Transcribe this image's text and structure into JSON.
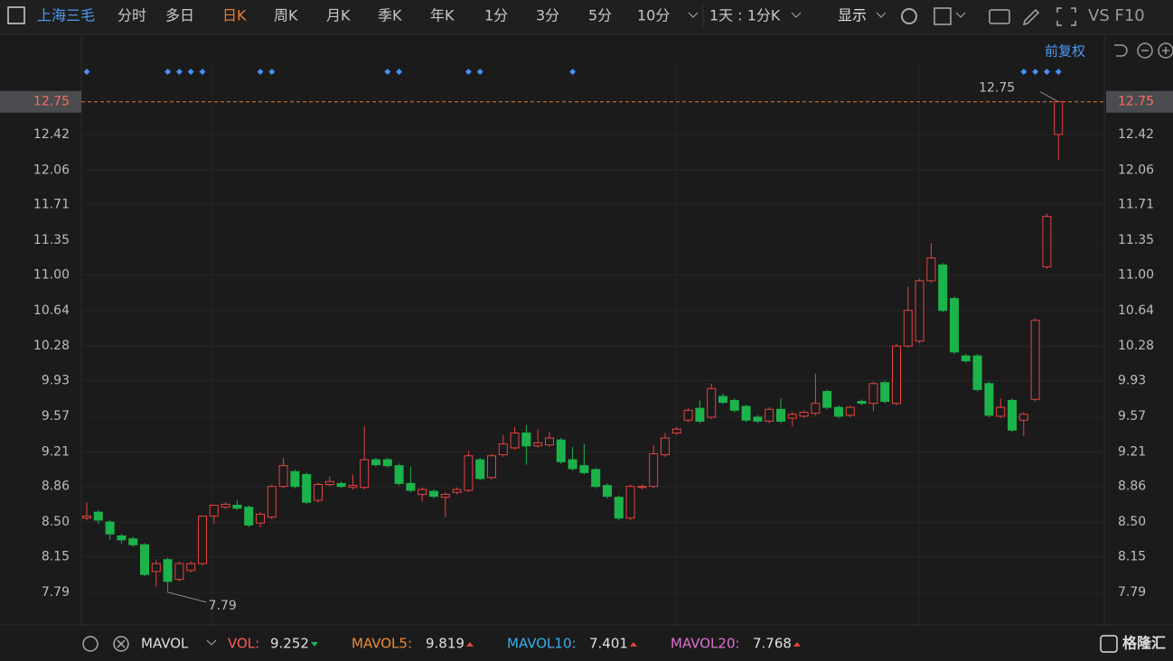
{
  "toolbar": {
    "stock": "上海三毛",
    "tabs": [
      "分时",
      "多日",
      "日K",
      "周K",
      "月K",
      "季K",
      "年K",
      "1分",
      "3分",
      "5分",
      "10分"
    ],
    "period": "1天 : 1分K",
    "display": "显示",
    "extra": "VS F10"
  },
  "adjust": "前复权",
  "indicator": {
    "name": "MAVOL",
    "items": [
      {
        "label": "VOL:",
        "value": 9.252
      },
      {
        "label": "MAVOL5:",
        "value": 9.819
      },
      {
        "label": "MAVOL10:",
        "value": 7.401
      },
      {
        "label": "MAVOL20:",
        "value": 7.768
      }
    ]
  },
  "logo": "格隆汇",
  "chart_data": {
    "type": "candlestick",
    "ylim": [
      7.46,
      13.14
    ],
    "yticks": [
      12.75,
      12.42,
      12.06,
      11.71,
      11.35,
      {
        "value": 11,
        "label": "11.00"
      },
      10.64,
      10.28,
      9.93,
      9.57,
      9.21,
      8.86,
      {
        "value": 8.5,
        "label": "8.50"
      },
      8.15,
      7.79
    ],
    "grid": true,
    "up_color": "#e8433f",
    "down_color": "#1db34b",
    "annotations": [
      {
        "text": "12.75",
        "index": 84
      },
      {
        "text": "7.79",
        "index": 7
      }
    ],
    "event_markers": [
      0,
      7,
      8,
      9,
      10,
      15,
      16,
      26,
      27,
      33,
      34,
      42,
      81,
      82,
      83,
      84
    ],
    "ohlc": [
      [
        8.54,
        8.7,
        8.52,
        8.56
      ],
      [
        8.6,
        8.62,
        8.48,
        8.52
      ],
      [
        8.5,
        8.52,
        8.32,
        8.38
      ],
      [
        8.36,
        8.38,
        8.28,
        8.32
      ],
      [
        8.33,
        8.35,
        8.25,
        8.27
      ],
      [
        8.27,
        8.29,
        7.95,
        7.97
      ],
      [
        8.0,
        8.12,
        7.85,
        8.08
      ],
      [
        8.12,
        8.14,
        7.79,
        7.9
      ],
      [
        7.92,
        8.1,
        7.9,
        8.08
      ],
      [
        8.01,
        8.1,
        7.99,
        8.08
      ],
      [
        8.08,
        8.56,
        8.06,
        8.56
      ],
      [
        8.56,
        8.67,
        8.48,
        8.67
      ],
      [
        8.65,
        8.7,
        8.63,
        8.68
      ],
      [
        8.67,
        8.72,
        8.62,
        8.64
      ],
      [
        8.65,
        8.67,
        8.45,
        8.47
      ],
      [
        8.49,
        8.6,
        8.45,
        8.58
      ],
      [
        8.55,
        8.88,
        8.53,
        8.86
      ],
      [
        8.86,
        9.15,
        8.84,
        9.07
      ],
      [
        9.01,
        9.03,
        8.84,
        8.86
      ],
      [
        8.98,
        9.0,
        8.68,
        8.7
      ],
      [
        8.72,
        8.9,
        8.7,
        8.88
      ],
      [
        8.88,
        8.96,
        8.86,
        8.91
      ],
      [
        8.89,
        8.91,
        8.84,
        8.86
      ],
      [
        8.85,
        8.98,
        8.83,
        8.87
      ],
      [
        8.85,
        9.47,
        8.83,
        9.13
      ],
      [
        9.13,
        9.15,
        9.06,
        9.08
      ],
      [
        9.13,
        9.15,
        9.05,
        9.07
      ],
      [
        9.07,
        9.09,
        8.87,
        8.89
      ],
      [
        8.89,
        9.06,
        8.8,
        8.82
      ],
      [
        8.78,
        8.85,
        8.71,
        8.83
      ],
      [
        8.81,
        8.83,
        8.74,
        8.76
      ],
      [
        8.75,
        8.8,
        8.55,
        8.78
      ],
      [
        8.8,
        8.85,
        8.78,
        8.83
      ],
      [
        8.82,
        9.22,
        8.8,
        9.17
      ],
      [
        9.13,
        9.15,
        8.92,
        8.94
      ],
      [
        8.95,
        9.19,
        8.93,
        9.17
      ],
      [
        9.18,
        9.38,
        9.16,
        9.29
      ],
      [
        9.25,
        9.46,
        9.23,
        9.4
      ],
      [
        9.4,
        9.48,
        9.08,
        9.27
      ],
      [
        9.27,
        9.44,
        9.25,
        9.3
      ],
      [
        9.28,
        9.41,
        9.26,
        9.35
      ],
      [
        9.33,
        9.35,
        9.09,
        9.11
      ],
      [
        9.13,
        9.26,
        9.02,
        9.04
      ],
      [
        9.07,
        9.29,
        8.98,
        9.0
      ],
      [
        9.03,
        9.05,
        8.84,
        8.86
      ],
      [
        8.87,
        8.89,
        8.74,
        8.76
      ],
      [
        8.75,
        8.77,
        8.52,
        8.54
      ],
      [
        8.54,
        8.88,
        8.52,
        8.86
      ],
      [
        8.85,
        8.88,
        8.83,
        8.86
      ],
      [
        8.86,
        9.28,
        8.84,
        9.19
      ],
      [
        9.18,
        9.4,
        9.16,
        9.35
      ],
      [
        9.4,
        9.46,
        9.38,
        9.44
      ],
      [
        9.53,
        9.65,
        9.51,
        9.63
      ],
      [
        9.65,
        9.73,
        9.5,
        9.52
      ],
      [
        9.56,
        9.9,
        9.54,
        9.85
      ],
      [
        9.77,
        9.8,
        9.69,
        9.71
      ],
      [
        9.73,
        9.75,
        9.61,
        9.63
      ],
      [
        9.67,
        9.69,
        9.51,
        9.53
      ],
      [
        9.56,
        9.58,
        9.5,
        9.52
      ],
      [
        9.52,
        9.66,
        9.5,
        9.64
      ],
      [
        9.64,
        9.75,
        9.5,
        9.52
      ],
      [
        9.55,
        9.61,
        9.47,
        9.59
      ],
      [
        9.57,
        9.63,
        9.55,
        9.61
      ],
      [
        9.6,
        10.0,
        9.58,
        9.7
      ],
      [
        9.82,
        9.84,
        9.64,
        9.66
      ],
      [
        9.66,
        9.68,
        9.55,
        9.57
      ],
      [
        9.58,
        9.68,
        9.56,
        9.66
      ],
      [
        9.72,
        9.74,
        9.68,
        9.7
      ],
      [
        9.7,
        9.92,
        9.62,
        9.9
      ],
      [
        9.91,
        9.93,
        9.7,
        9.72
      ],
      [
        9.7,
        10.3,
        9.68,
        10.28
      ],
      [
        10.28,
        10.88,
        10.26,
        10.64
      ],
      [
        10.33,
        10.96,
        10.31,
        10.94
      ],
      [
        10.94,
        11.32,
        10.92,
        11.17
      ],
      [
        11.1,
        11.12,
        10.62,
        10.64
      ],
      [
        10.76,
        10.78,
        10.2,
        10.22
      ],
      [
        10.18,
        10.2,
        10.11,
        10.13
      ],
      [
        10.18,
        10.2,
        9.82,
        9.84
      ],
      [
        9.9,
        9.92,
        9.56,
        9.58
      ],
      [
        9.57,
        9.75,
        9.55,
        9.66
      ],
      [
        9.73,
        9.75,
        9.41,
        9.43
      ],
      [
        9.53,
        9.61,
        9.37,
        9.59
      ],
      [
        9.74,
        10.56,
        9.72,
        10.54
      ],
      [
        11.08,
        11.62,
        11.06,
        11.59
      ],
      [
        12.42,
        12.75,
        12.16,
        12.75
      ]
    ]
  }
}
